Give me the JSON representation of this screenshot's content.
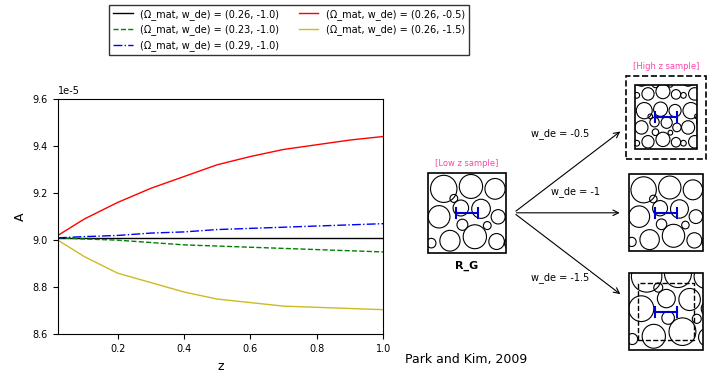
{
  "chart_data": {
    "type": "line",
    "xlabel": "z",
    "ylabel": "A",
    "y_offset_text": "1e-5",
    "x": [
      0.02,
      0.1,
      0.2,
      0.3,
      0.4,
      0.5,
      0.6,
      0.7,
      0.8,
      0.9,
      1.0
    ],
    "series": [
      {
        "name": "(Ω_mat, w_de) = (0.26, -1.0)",
        "color": "#000000",
        "line_style": "solid",
        "values": [
          9.01,
          9.01,
          9.01,
          9.01,
          9.01,
          9.01,
          9.01,
          9.01,
          9.01,
          9.01,
          9.01
        ]
      },
      {
        "name": "(Ω_mat, w_de) = (0.23, -1.0)",
        "color": "#008000",
        "line_style": "dashed",
        "values": [
          9.01,
          9.005,
          9.0,
          8.99,
          8.98,
          8.975,
          8.97,
          8.965,
          8.96,
          8.955,
          8.95
        ]
      },
      {
        "name": "(Ω_mat, w_de) = (0.29, -1.0)",
        "color": "#0000ff",
        "line_style": "dashdot",
        "values": [
          9.01,
          9.015,
          9.02,
          9.03,
          9.035,
          9.045,
          9.05,
          9.055,
          9.06,
          9.065,
          9.07
        ]
      },
      {
        "name": "(Ω_mat, w_de) = (0.26, -0.5)",
        "color": "#ff0000",
        "line_style": "solid",
        "values": [
          9.02,
          9.09,
          9.16,
          9.22,
          9.27,
          9.32,
          9.355,
          9.385,
          9.405,
          9.425,
          9.44
        ]
      },
      {
        "name": "(Ω_mat, w_de) = (0.26, -1.5)",
        "color": "#ccbb22",
        "line_style": "solid",
        "values": [
          9.0,
          8.93,
          8.86,
          8.82,
          8.78,
          8.75,
          8.735,
          8.72,
          8.715,
          8.71,
          8.705
        ]
      }
    ],
    "xlim": [
      0.02,
      1.0
    ],
    "xticks": [
      0.2,
      0.4,
      0.6,
      0.8,
      1.0
    ],
    "ylim": [
      8.6,
      9.6
    ],
    "yticks": [
      8.6,
      8.8,
      9.0,
      9.2,
      9.4,
      9.6
    ],
    "legend": "upper center"
  },
  "diagram": {
    "low_sample_label": "[Low z sample]",
    "high_sample_label": "[High z sample]",
    "scale_label": "R_G",
    "arrows": [
      {
        "label": "w_de = -0.5"
      },
      {
        "label": "w_de = -1"
      },
      {
        "label": "w_de = -1.5"
      }
    ],
    "citation": "Park and Kim, 2009"
  }
}
